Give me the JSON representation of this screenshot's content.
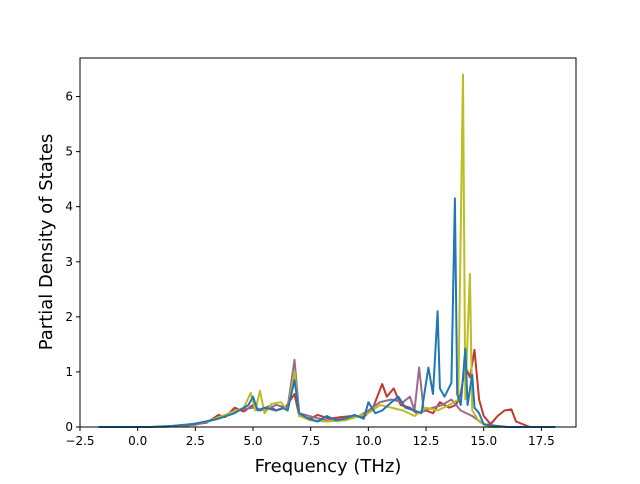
{
  "chart_data": {
    "type": "line",
    "title": "",
    "xlabel": "Frequency (THz)",
    "ylabel": "Partial Density of States",
    "xlim": [
      -2.5,
      19.0
    ],
    "ylim": [
      0,
      6.7
    ],
    "xticks": [
      -2.5,
      0.0,
      2.5,
      5.0,
      7.5,
      10.0,
      12.5,
      15.0,
      17.5
    ],
    "xtick_labels": [
      "−2.5",
      "0.0",
      "2.5",
      "5.0",
      "7.5",
      "10.0",
      "12.5",
      "15.0",
      "17.5"
    ],
    "yticks": [
      0,
      1,
      2,
      3,
      4,
      5,
      6
    ],
    "ytick_labels": [
      "0",
      "1",
      "2",
      "3",
      "4",
      "5",
      "6"
    ],
    "grid": false,
    "legend": false,
    "series": [
      {
        "color": "#c0392b",
        "points": [
          [
            -1.7,
            0
          ],
          [
            1.0,
            0
          ],
          [
            2.0,
            0.02
          ],
          [
            3.0,
            0.08
          ],
          [
            3.5,
            0.22
          ],
          [
            3.8,
            0.18
          ],
          [
            4.2,
            0.35
          ],
          [
            4.6,
            0.28
          ],
          [
            5.0,
            0.4
          ],
          [
            5.3,
            0.3
          ],
          [
            5.7,
            0.38
          ],
          [
            6.0,
            0.3
          ],
          [
            6.4,
            0.35
          ],
          [
            6.8,
            0.6
          ],
          [
            7.0,
            0.2
          ],
          [
            7.5,
            0.15
          ],
          [
            7.8,
            0.22
          ],
          [
            8.3,
            0.15
          ],
          [
            8.8,
            0.18
          ],
          [
            9.3,
            0.2
          ],
          [
            9.8,
            0.18
          ],
          [
            10.2,
            0.35
          ],
          [
            10.6,
            0.78
          ],
          [
            10.8,
            0.55
          ],
          [
            11.1,
            0.7
          ],
          [
            11.4,
            0.4
          ],
          [
            11.8,
            0.35
          ],
          [
            12.1,
            0.25
          ],
          [
            12.5,
            0.3
          ],
          [
            12.8,
            0.25
          ],
          [
            13.1,
            0.45
          ],
          [
            13.5,
            0.35
          ],
          [
            13.8,
            0.4
          ],
          [
            14.0,
            0.6
          ],
          [
            14.2,
            1.1
          ],
          [
            14.4,
            0.9
          ],
          [
            14.6,
            1.4
          ],
          [
            14.8,
            0.5
          ],
          [
            15.0,
            0.2
          ],
          [
            15.3,
            0.05
          ],
          [
            15.6,
            0.2
          ],
          [
            15.9,
            0.3
          ],
          [
            16.2,
            0.32
          ],
          [
            16.4,
            0.1
          ],
          [
            17.0,
            0
          ],
          [
            18.1,
            0
          ]
        ]
      },
      {
        "color": "#9b6b8e",
        "points": [
          [
            -1.7,
            0
          ],
          [
            1.0,
            0
          ],
          [
            2.5,
            0.04
          ],
          [
            3.5,
            0.15
          ],
          [
            4.2,
            0.3
          ],
          [
            5.0,
            0.35
          ],
          [
            5.5,
            0.3
          ],
          [
            6.0,
            0.4
          ],
          [
            6.5,
            0.35
          ],
          [
            6.8,
            1.22
          ],
          [
            7.0,
            0.25
          ],
          [
            7.6,
            0.18
          ],
          [
            8.2,
            0.12
          ],
          [
            9.0,
            0.15
          ],
          [
            9.6,
            0.2
          ],
          [
            10.0,
            0.3
          ],
          [
            10.5,
            0.45
          ],
          [
            11.0,
            0.5
          ],
          [
            11.5,
            0.45
          ],
          [
            11.8,
            0.55
          ],
          [
            12.0,
            0.3
          ],
          [
            12.2,
            1.08
          ],
          [
            12.4,
            0.3
          ],
          [
            12.8,
            0.35
          ],
          [
            13.2,
            0.4
          ],
          [
            13.6,
            0.5
          ],
          [
            14.0,
            0.3
          ],
          [
            14.5,
            0.2
          ],
          [
            15.0,
            0.05
          ],
          [
            16.0,
            0
          ],
          [
            18.1,
            0
          ]
        ]
      },
      {
        "color": "#bcbd22",
        "points": [
          [
            -1.7,
            0
          ],
          [
            1.0,
            0
          ],
          [
            2.0,
            0.03
          ],
          [
            3.0,
            0.1
          ],
          [
            4.0,
            0.25
          ],
          [
            4.6,
            0.35
          ],
          [
            4.9,
            0.62
          ],
          [
            5.1,
            0.3
          ],
          [
            5.3,
            0.66
          ],
          [
            5.5,
            0.25
          ],
          [
            5.8,
            0.42
          ],
          [
            6.2,
            0.45
          ],
          [
            6.5,
            0.3
          ],
          [
            6.8,
            1.0
          ],
          [
            7.0,
            0.2
          ],
          [
            7.5,
            0.12
          ],
          [
            8.2,
            0.1
          ],
          [
            9.0,
            0.12
          ],
          [
            10.0,
            0.25
          ],
          [
            10.5,
            0.4
          ],
          [
            11.0,
            0.35
          ],
          [
            11.5,
            0.3
          ],
          [
            12.0,
            0.2
          ],
          [
            12.5,
            0.35
          ],
          [
            13.0,
            0.3
          ],
          [
            13.5,
            0.4
          ],
          [
            13.9,
            0.5
          ],
          [
            14.1,
            6.4
          ],
          [
            14.2,
            0.5
          ],
          [
            14.4,
            2.78
          ],
          [
            14.5,
            0.3
          ],
          [
            14.8,
            0.1
          ],
          [
            15.2,
            0
          ],
          [
            18.1,
            0
          ]
        ]
      },
      {
        "color": "#1f77b4",
        "points": [
          [
            -1.7,
            0
          ],
          [
            0.5,
            0
          ],
          [
            1.5,
            0.02
          ],
          [
            2.5,
            0.06
          ],
          [
            3.5,
            0.15
          ],
          [
            4.2,
            0.25
          ],
          [
            4.8,
            0.4
          ],
          [
            5.0,
            0.55
          ],
          [
            5.2,
            0.3
          ],
          [
            5.5,
            0.35
          ],
          [
            6.0,
            0.3
          ],
          [
            6.3,
            0.35
          ],
          [
            6.5,
            0.3
          ],
          [
            6.8,
            0.85
          ],
          [
            7.0,
            0.25
          ],
          [
            7.4,
            0.15
          ],
          [
            7.8,
            0.1
          ],
          [
            8.2,
            0.2
          ],
          [
            8.6,
            0.12
          ],
          [
            9.0,
            0.15
          ],
          [
            9.4,
            0.22
          ],
          [
            9.8,
            0.15
          ],
          [
            10.0,
            0.45
          ],
          [
            10.3,
            0.25
          ],
          [
            10.6,
            0.3
          ],
          [
            11.0,
            0.45
          ],
          [
            11.3,
            0.55
          ],
          [
            11.6,
            0.35
          ],
          [
            12.0,
            0.3
          ],
          [
            12.3,
            0.25
          ],
          [
            12.6,
            1.08
          ],
          [
            12.8,
            0.6
          ],
          [
            13.0,
            2.1
          ],
          [
            13.1,
            0.7
          ],
          [
            13.3,
            0.55
          ],
          [
            13.6,
            0.8
          ],
          [
            13.75,
            4.15
          ],
          [
            13.85,
            0.6
          ],
          [
            14.0,
            0.4
          ],
          [
            14.2,
            1.42
          ],
          [
            14.3,
            0.4
          ],
          [
            14.5,
            0.95
          ],
          [
            14.6,
            0.35
          ],
          [
            14.8,
            0.25
          ],
          [
            15.0,
            0.05
          ],
          [
            15.5,
            0.02
          ],
          [
            16.0,
            0
          ],
          [
            18.1,
            0
          ]
        ]
      }
    ]
  }
}
